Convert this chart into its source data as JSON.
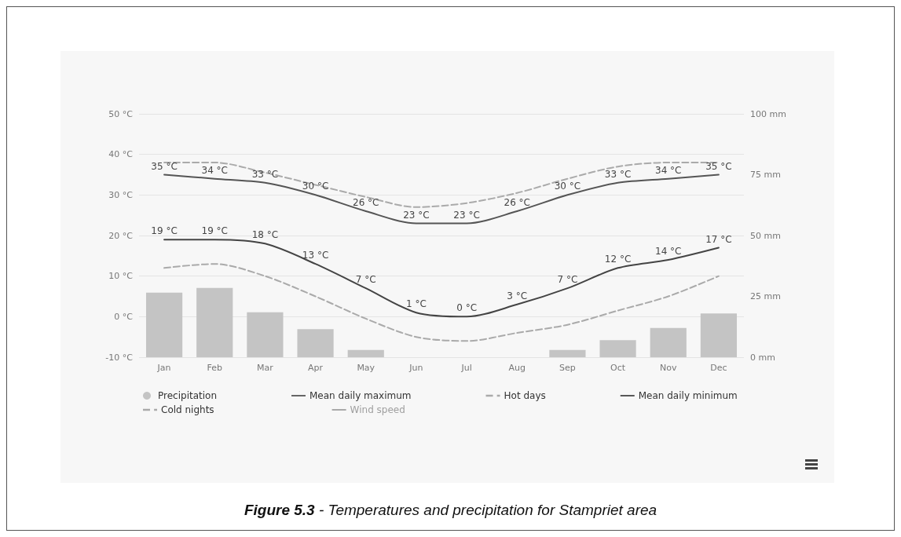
{
  "chart_data": {
    "type": "line",
    "title": "Figure 5.3 - Temperatures and precipitation for Stampriet area",
    "categories": [
      "Jan",
      "Feb",
      "Mar",
      "Apr",
      "May",
      "Jun",
      "Jul",
      "Aug",
      "Sep",
      "Oct",
      "Nov",
      "Dec"
    ],
    "ylim": [
      -10,
      50
    ],
    "yticks": [
      {
        "value": -10,
        "label": "-10 °C"
      },
      {
        "value": 0,
        "label": "0 °C"
      },
      {
        "value": 10,
        "label": "10 °C"
      },
      {
        "value": 20,
        "label": "20 °C"
      },
      {
        "value": 30,
        "label": "30 °C"
      },
      {
        "value": 40,
        "label": "40 °C"
      },
      {
        "value": 50,
        "label": "50 °C"
      }
    ],
    "y2lim": [
      0,
      100
    ],
    "y2ticks": [
      {
        "value": 0,
        "label": "0 mm"
      },
      {
        "value": 25,
        "label": "25 mm"
      },
      {
        "value": 50,
        "label": "50 mm"
      },
      {
        "value": 75,
        "label": "75 mm"
      },
      {
        "value": 100,
        "label": "100 mm"
      }
    ],
    "grid": "y",
    "legend": "bottom",
    "marker": "none",
    "series": [
      {
        "type": "bar",
        "name": "Precipitation",
        "color": "#c4c4c4",
        "axis": "y2",
        "values": [
          26.5,
          28.5,
          18.5,
          11.5,
          3,
          0,
          0,
          0,
          3,
          7,
          12,
          18
        ]
      },
      {
        "name": "Mean daily maximum",
        "color": "#555555",
        "line_style": "solid",
        "values": [
          35,
          34,
          33,
          30,
          26,
          23,
          23,
          26,
          30,
          33,
          34,
          35
        ],
        "value_labels": [
          "35 °C",
          "34 °C",
          "33 °C",
          "30 °C",
          "26 °C",
          "23 °C",
          "23 °C",
          "26 °C",
          "30 °C",
          "33 °C",
          "34 °C",
          "35 °C"
        ]
      },
      {
        "name": "Hot days",
        "color": "#aaaaaa",
        "line_style": "dashed",
        "values": [
          38,
          38,
          35.5,
          32.5,
          29.5,
          27,
          28,
          30.5,
          34,
          37,
          38,
          38
        ]
      },
      {
        "name": "Mean daily minimum",
        "color": "#444444",
        "line_style": "solid",
        "values": [
          19,
          19,
          18,
          13,
          7,
          1,
          0,
          3,
          7,
          12,
          14,
          17
        ],
        "value_labels": [
          "19 °C",
          "19 °C",
          "18 °C",
          "13 °C",
          "7 °C",
          "1 °C",
          "0 °C",
          "3 °C",
          "7 °C",
          "12 °C",
          "14 °C",
          "17 °C"
        ]
      },
      {
        "name": "Cold nights",
        "color": "#aaaaaa",
        "line_style": "dashed",
        "values": [
          12,
          13,
          10,
          5,
          -0.5,
          -5,
          -6,
          -4,
          -2,
          1.5,
          5,
          10
        ]
      },
      {
        "name": "Wind speed",
        "color": "#a0a0a0",
        "line_style": "solid",
        "values": [
          null,
          null,
          null,
          null,
          null,
          null,
          null,
          null,
          null,
          null,
          null,
          null
        ]
      }
    ]
  }
}
